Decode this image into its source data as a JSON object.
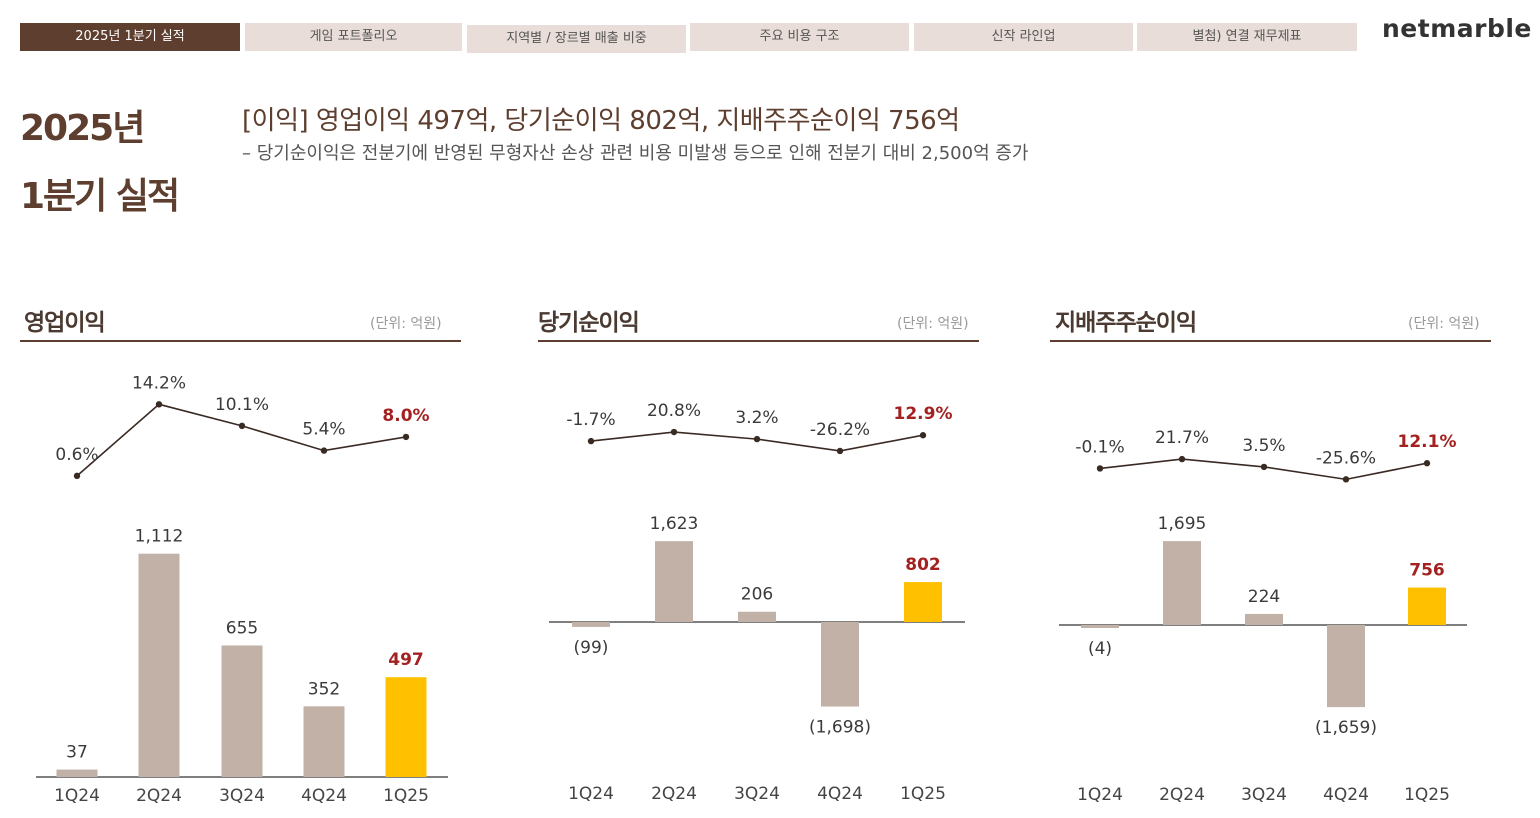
{
  "tabs": [
    {
      "label": "2025년 1분기 실적",
      "active": true
    },
    {
      "label": "게임 포트폴리오",
      "active": false
    },
    {
      "label": "지역별 / 장르별 매출 비중",
      "active": false
    },
    {
      "label": "주요 비용 구조",
      "active": false
    },
    {
      "label": "신작 라인업",
      "active": false
    },
    {
      "label": "별첨) 연결 재무제표",
      "active": false
    }
  ],
  "brand": "netmarble",
  "side_title_line1": "2025년",
  "side_title_line2": "1분기 실적",
  "headline": "[이익] 영업이익 497억,  당기순이익 802억, 지배주주순이익 756억",
  "subline": "– 당기순이익은 전분기에 반영된 무형자산 손상 관련 비용 미발생 등으로 인해 전분기 대비 2,500억 증가",
  "colors": {
    "bar": "#c2b1a7",
    "highlight": "#ffc000",
    "accent_text": "#a32121",
    "line": "#3a2a24",
    "brown": "#5e3e2e"
  },
  "panels": [
    {
      "title": "영업이익",
      "unit": "(단위: 억원)"
    },
    {
      "title": "당기순이익",
      "unit": "(단위: 억원)"
    },
    {
      "title": "지배주주순이익",
      "unit": "(단위: 억원)"
    }
  ],
  "chart_data": [
    {
      "type": "bar",
      "title": "영업이익",
      "categories": [
        "1Q24",
        "2Q24",
        "3Q24",
        "4Q24",
        "1Q25"
      ],
      "values": [
        37,
        1112,
        655,
        352,
        497
      ],
      "value_labels": [
        "37",
        "1,112",
        "655",
        "352",
        "497"
      ],
      "highlight_index": 4,
      "margin_line": {
        "values": [
          0.6,
          14.2,
          10.1,
          5.4,
          8.0
        ],
        "labels": [
          "0.6%",
          "14.2%",
          "10.1%",
          "5.4%",
          "8.0%"
        ]
      }
    },
    {
      "type": "bar",
      "title": "당기순이익",
      "categories": [
        "1Q24",
        "2Q24",
        "3Q24",
        "4Q24",
        "1Q25"
      ],
      "values": [
        -99,
        1623,
        206,
        -1698,
        802
      ],
      "value_labels": [
        "(99)",
        "1,623",
        "206",
        "(1,698)",
        "802"
      ],
      "highlight_index": 4,
      "margin_line": {
        "values": [
          -1.7,
          20.8,
          3.2,
          -26.2,
          12.9
        ],
        "labels": [
          "-1.7%",
          "20.8%",
          "3.2%",
          "-26.2%",
          "12.9%"
        ]
      }
    },
    {
      "type": "bar",
      "title": "지배주주순이익",
      "categories": [
        "1Q24",
        "2Q24",
        "3Q24",
        "4Q24",
        "1Q25"
      ],
      "values": [
        -4,
        1695,
        224,
        -1659,
        756
      ],
      "value_labels": [
        "(4)",
        "1,695",
        "224",
        "(1,659)",
        "756"
      ],
      "highlight_index": 4,
      "margin_line": {
        "values": [
          -0.1,
          21.7,
          3.5,
          -25.6,
          12.1
        ],
        "labels": [
          "-0.1%",
          "21.7%",
          "3.5%",
          "-25.6%",
          "12.1%"
        ]
      }
    }
  ]
}
